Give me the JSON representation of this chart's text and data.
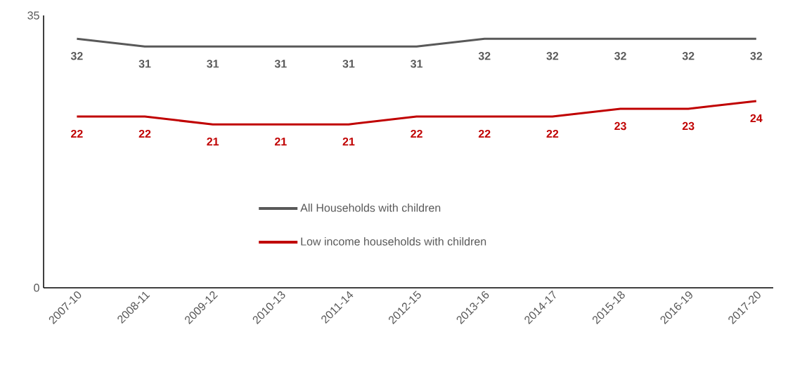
{
  "chart_data": {
    "type": "line",
    "categories": [
      "2007-10",
      "2008-11",
      "2009-12",
      "2010-13",
      "2011-14",
      "2012-15",
      "2013-16",
      "2014-17",
      "2015-18",
      "2016-19",
      "2017-20"
    ],
    "series": [
      {
        "name": "All Households with children",
        "color": "#595959",
        "values": [
          32,
          31,
          31,
          31,
          31,
          31,
          32,
          32,
          32,
          32,
          32
        ]
      },
      {
        "name": "Low income households with children",
        "color": "#c00000",
        "values": [
          22,
          22,
          21,
          21,
          21,
          22,
          22,
          22,
          23,
          23,
          24
        ]
      }
    ],
    "ylim": [
      0,
      35
    ],
    "yticks": [
      0,
      35
    ],
    "data_labels": true,
    "legend": "bottom",
    "grid": false,
    "marker": "none",
    "line_style": "solid"
  }
}
